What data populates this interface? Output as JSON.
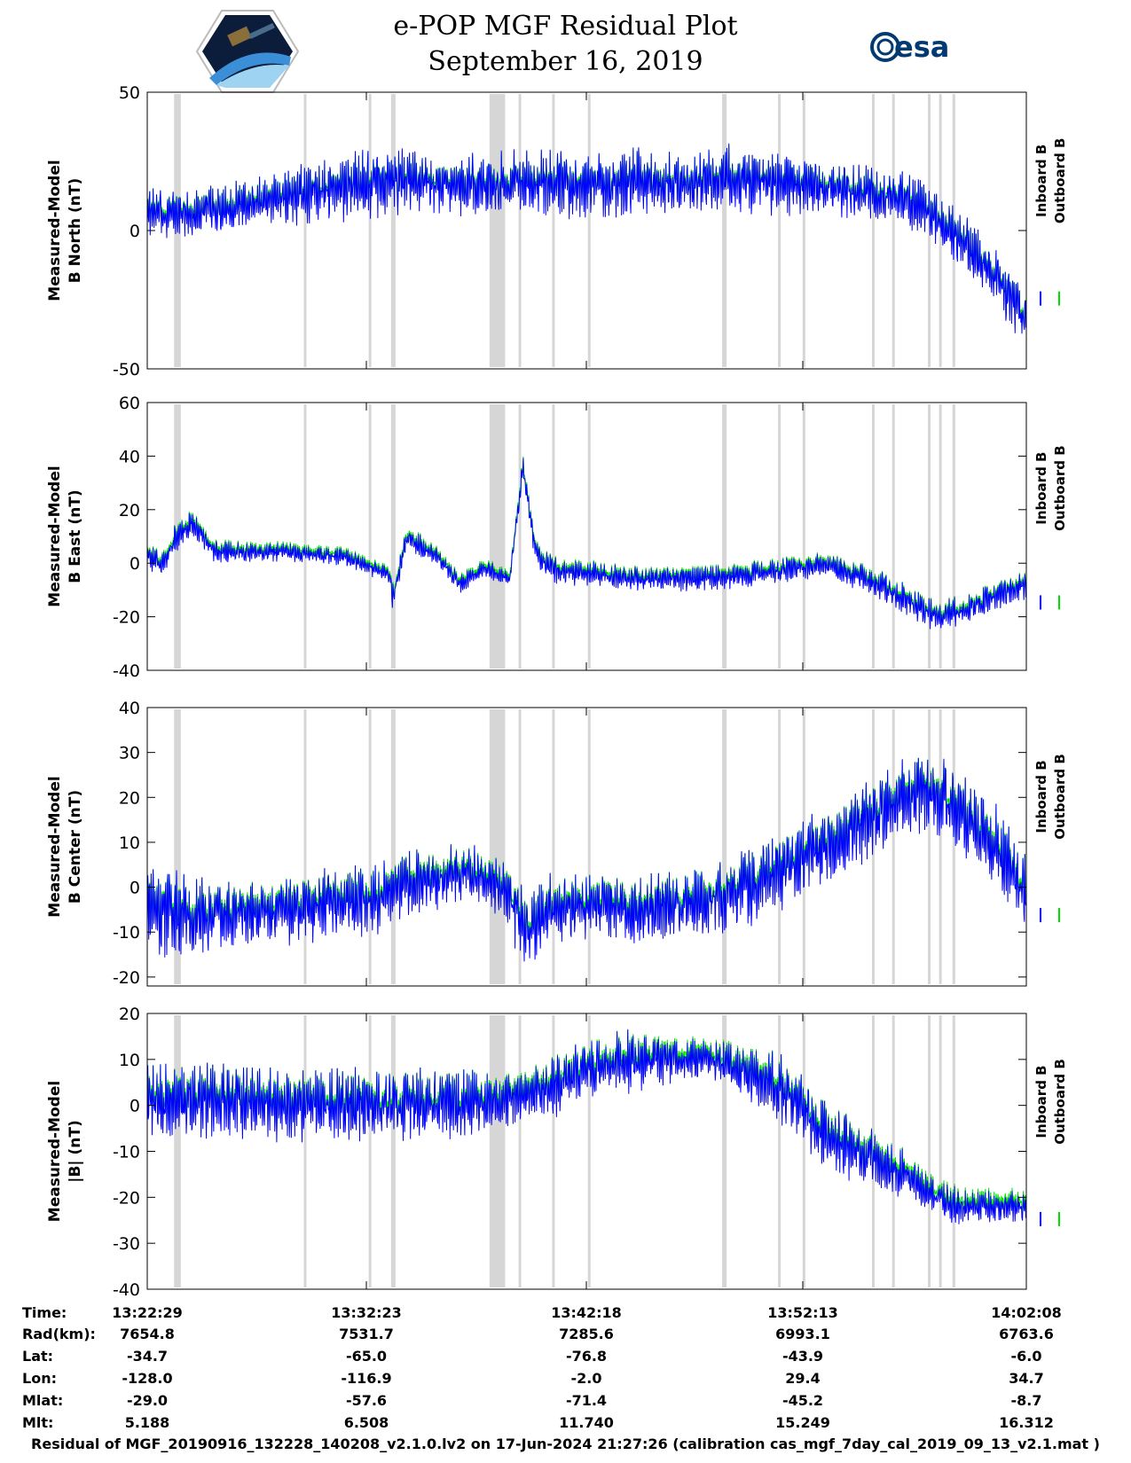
{
  "header": {
    "title_line1": "e-POP MGF Residual Plot",
    "title_line2": "September 16, 2019",
    "left_logo": "cassiope-mission-logo",
    "right_logo_text": "esa"
  },
  "chart_data": [
    {
      "type": "line",
      "ylabel_line1": "Measured-Model",
      "ylabel_line2": "B North (nT)",
      "ylim": [
        -50,
        50
      ],
      "yticks": [
        "-50",
        "0",
        "50"
      ],
      "legend": {
        "position": "right",
        "entries": [
          "Inboard B",
          "Outboard B"
        ]
      },
      "series": [
        {
          "name": "Inboard B",
          "color": "#0000ff",
          "x_min": [
            0,
            2,
            4,
            6,
            8,
            10,
            12,
            14,
            16,
            18,
            20,
            22,
            24,
            26,
            28,
            30,
            32,
            34,
            36,
            38,
            39.3
          ],
          "trend": [
            6,
            6,
            9,
            12,
            14,
            17,
            18,
            16,
            17,
            18,
            16,
            18,
            17,
            19,
            17,
            16,
            14,
            11,
            0,
            -18,
            -32
          ],
          "spread": [
            8,
            8,
            8,
            9,
            10,
            12,
            10,
            10,
            11,
            12,
            10,
            11,
            10,
            11,
            10,
            9,
            9,
            9,
            9,
            10,
            9
          ]
        },
        {
          "name": "Outboard B",
          "color": "#00e000"
        }
      ]
    },
    {
      "type": "line",
      "ylabel_line1": "Measured-Model",
      "ylabel_line2": "B East (nT)",
      "ylim": [
        -40,
        60
      ],
      "yticks": [
        "-40",
        "-20",
        "0",
        "20",
        "40",
        "60"
      ],
      "legend": {
        "position": "right",
        "entries": [
          "Inboard B",
          "Outboard B"
        ]
      },
      "series": [
        {
          "name": "Inboard B",
          "color": "#0000ff",
          "x_min": [
            0,
            0.7,
            1.3,
            2,
            3,
            6,
            8,
            9,
            9.1,
            10.8,
            11,
            11.3,
            11.6,
            13,
            14,
            15,
            16,
            16.2,
            16.8,
            17.2,
            17.4,
            18,
            20,
            22,
            24,
            26,
            28,
            30,
            32,
            34,
            35.2,
            37,
            39.3
          ],
          "trend": [
            2,
            0,
            10,
            15,
            4,
            4,
            3,
            2,
            1,
            -4,
            -12,
            -2,
            10,
            2,
            -8,
            -2,
            -5,
            -6,
            36,
            12,
            4,
            -2,
            -4,
            -6,
            -6,
            -5,
            -3,
            -1,
            -5,
            -14,
            -20,
            -16,
            -8
          ],
          "spread": [
            4,
            4,
            5,
            4,
            4,
            3,
            3,
            3,
            3,
            3,
            7,
            5,
            4,
            3,
            3,
            3,
            3,
            2,
            4,
            4,
            4,
            5,
            4,
            4,
            4,
            4,
            4,
            4,
            5,
            5,
            5,
            5,
            5
          ]
        },
        {
          "name": "Outboard B",
          "color": "#00e000"
        }
      ]
    },
    {
      "type": "line",
      "ylabel_line1": "Measured-Model",
      "ylabel_line2": "B Center (nT)",
      "ylim": [
        -22,
        40
      ],
      "yticks": [
        "-20",
        "-10",
        "0",
        "10",
        "20",
        "30",
        "40"
      ],
      "legend": {
        "position": "right",
        "entries": [
          "Inboard B",
          "Outboard B"
        ]
      },
      "series": [
        {
          "name": "Inboard B",
          "color": "#0000ff",
          "x_min": [
            0,
            1,
            2,
            4,
            6,
            8,
            10,
            11,
            12,
            13,
            14,
            15,
            16,
            16.5,
            17,
            18,
            20,
            22,
            24,
            26,
            28,
            30,
            32,
            34,
            35,
            36,
            38,
            39.3
          ],
          "trend": [
            -5,
            -6,
            -7,
            -6,
            -5,
            -4,
            -3,
            -1,
            1,
            2,
            3,
            2,
            -1,
            -5,
            -10,
            -5,
            -4,
            -5,
            -4,
            -2,
            3,
            8,
            14,
            20,
            21,
            18,
            9,
            -2
          ],
          "spread": [
            8,
            9,
            8,
            7,
            7,
            7,
            7,
            7,
            7,
            6,
            6,
            6,
            6,
            8,
            8,
            7,
            7,
            7,
            7,
            8,
            8,
            8,
            8,
            8,
            8,
            8,
            8,
            8
          ]
        },
        {
          "name": "Outboard B",
          "color": "#00e000"
        }
      ]
    },
    {
      "type": "line",
      "ylabel_line1": "Measured-Model",
      "ylabel_line2": "|B| (nT)",
      "ylim": [
        -40,
        20
      ],
      "yticks": [
        "-40",
        "-30",
        "-20",
        "-10",
        "0",
        "10",
        "20"
      ],
      "legend": {
        "position": "right",
        "entries": [
          "Inboard B",
          "Outboard B"
        ]
      },
      "series": [
        {
          "name": "Inboard B",
          "color": "#0000ff",
          "x_min": [
            0,
            2,
            4,
            6,
            8,
            10,
            12,
            14,
            16,
            18,
            20,
            22,
            24,
            26,
            28,
            30,
            32,
            34,
            35,
            36,
            37,
            39.3
          ],
          "trend": [
            1,
            1,
            1,
            0,
            0,
            0,
            0,
            0,
            1,
            4,
            8,
            10,
            10,
            9,
            5,
            -5,
            -11,
            -16,
            -19,
            -22,
            -22,
            -22
          ],
          "spread": [
            7,
            7,
            7,
            7,
            7,
            7,
            7,
            7,
            5,
            6,
            6,
            6,
            4,
            4,
            7,
            7,
            6,
            5,
            3,
            4,
            3,
            3
          ]
        },
        {
          "name": "Outboard B",
          "color": "#00e000"
        }
      ]
    }
  ],
  "x_axis": {
    "x_range_min": [
      0,
      39.3
    ],
    "tick_positions_min": [
      0,
      9.9,
      19.8,
      29.7,
      39.6
    ],
    "gap_bands_min": [
      [
        1.2,
        1.5
      ],
      [
        7,
        7.1
      ],
      [
        9.9,
        10
      ],
      [
        10.9,
        11.1
      ],
      [
        15.3,
        16
      ],
      [
        16.6,
        16.7
      ],
      [
        18.1,
        18.2
      ],
      [
        19.7,
        19.8
      ],
      [
        25.7,
        25.9
      ],
      [
        28.2,
        28.3
      ],
      [
        29.3,
        29.4
      ],
      [
        32.4,
        32.5
      ],
      [
        33.3,
        33.4
      ],
      [
        34.9,
        35
      ],
      [
        35.4,
        35.5
      ],
      [
        36,
        36.1
      ]
    ]
  },
  "ephemeris": {
    "row_labels": [
      "Time:",
      "Rad(km):",
      "Lat:",
      "Lon:",
      "Mlat:",
      "Mlt:"
    ],
    "columns": [
      [
        "13:22:29",
        "7654.8",
        "-34.7",
        "-128.0",
        "-29.0",
        "5.188"
      ],
      [
        "13:32:23",
        "7531.7",
        "-65.0",
        "-116.9",
        "-57.6",
        "6.508"
      ],
      [
        "13:42:18",
        "7285.6",
        "-76.8",
        "-2.0",
        "-71.4",
        "11.740"
      ],
      [
        "13:52:13",
        "6993.1",
        "-43.9",
        "29.4",
        "-45.2",
        "15.249"
      ],
      [
        "14:02:08",
        "6763.6",
        "-6.0",
        "34.7",
        "-8.7",
        "16.312"
      ]
    ]
  },
  "footer": {
    "text": "Residual of MGF_20190916_132228_140208_v2.1.0.lv2 on 17-Jun-2024 21:27:26 (calibration cas_mgf_7day_cal_2019_09_13_v2.1.mat )"
  }
}
